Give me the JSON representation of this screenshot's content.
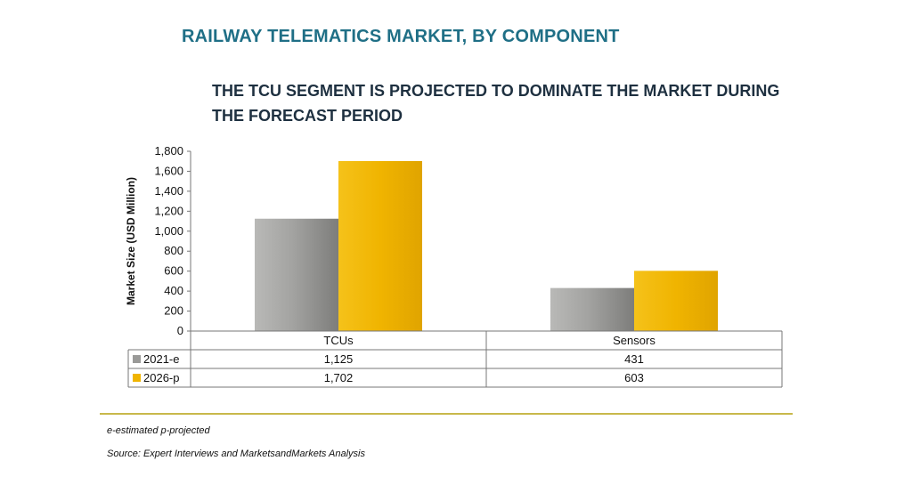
{
  "header": {
    "title": "RAILWAY TELEMATICS MARKET, BY COMPONENT",
    "subtitle": "THE TCU SEGMENT IS PROJECTED TO DOMINATE THE MARKET DURING THE FORECAST PERIOD"
  },
  "chart_data": {
    "type": "bar",
    "categories": [
      "TCUs",
      "Sensors"
    ],
    "series": [
      {
        "name": "2021-e",
        "values": [
          1125,
          431
        ],
        "labels": [
          "1,125",
          "431"
        ],
        "color": "#9a9a98"
      },
      {
        "name": "2026-p",
        "values": [
          1702,
          603
        ],
        "labels": [
          "1,702",
          "603"
        ],
        "color": "#f0b400"
      }
    ],
    "ylabel": "Market Size (USD Million)",
    "ylim": [
      0,
      1800
    ],
    "yticks": [
      "0",
      "200",
      "400",
      "600",
      "800",
      "1,000",
      "1,200",
      "1,400",
      "1,600",
      "1,800"
    ],
    "grid": false,
    "legend": "data-table"
  },
  "footer": {
    "note": "e-estimated p-projected",
    "source": "Source: Expert Interviews and MarketsandMarkets Analysis"
  }
}
